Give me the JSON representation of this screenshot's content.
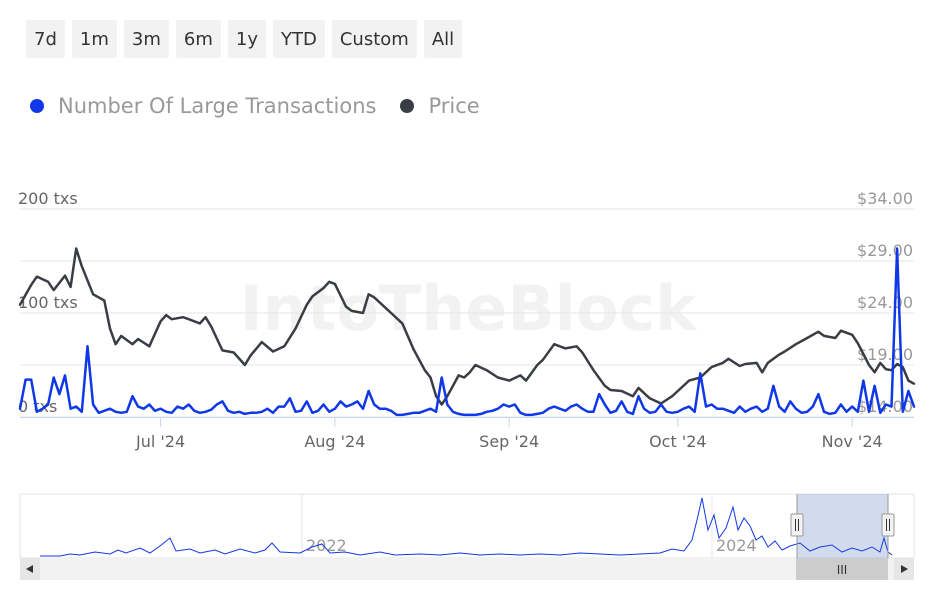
{
  "range_selector": {
    "buttons": [
      "7d",
      "1m",
      "3m",
      "6m",
      "1y",
      "YTD",
      "Custom",
      "All"
    ]
  },
  "legend": {
    "items": [
      {
        "label": "Number Of Large Transactions",
        "color": "#1038e8"
      },
      {
        "label": "Price",
        "color": "#3a3e44"
      }
    ]
  },
  "watermark": "IntoTheBlock",
  "chart_data": {
    "type": "line",
    "x_start": "2024-06-06",
    "x_end": "2024-11-12",
    "x_ticks": [
      {
        "date": "2024-07-01",
        "label": "Jul '24"
      },
      {
        "date": "2024-08-01",
        "label": "Aug '24"
      },
      {
        "date": "2024-09-01",
        "label": "Sep '24"
      },
      {
        "date": "2024-10-01",
        "label": "Oct '24"
      },
      {
        "date": "2024-11-01",
        "label": "Nov '24"
      }
    ],
    "y_left": {
      "min": 0,
      "max": 200,
      "ticks": [
        0,
        100,
        200
      ],
      "tick_labels": [
        "0 txs",
        "100 txs",
        "200 txs"
      ]
    },
    "y_right": {
      "min": 14,
      "max": 34,
      "ticks": [
        14,
        19,
        24,
        29,
        34
      ],
      "tick_labels": [
        "$14.00",
        "$19.00",
        "$24.00",
        "$29.00",
        "$34.00"
      ]
    },
    "grid": true,
    "series": [
      {
        "name": "Price",
        "axis": "right",
        "color": "#3a3e44",
        "points": [
          [
            "2024-06-06",
            24.8
          ],
          [
            "2024-06-08",
            26.7
          ],
          [
            "2024-06-09",
            27.5
          ],
          [
            "2024-06-11",
            27.0
          ],
          [
            "2024-06-12",
            26.2
          ],
          [
            "2024-06-14",
            27.6
          ],
          [
            "2024-06-15",
            26.5
          ],
          [
            "2024-06-16",
            30.2
          ],
          [
            "2024-06-17",
            28.5
          ],
          [
            "2024-06-19",
            25.8
          ],
          [
            "2024-06-21",
            25.2
          ],
          [
            "2024-06-22",
            22.5
          ],
          [
            "2024-06-23",
            21.0
          ],
          [
            "2024-06-24",
            21.8
          ],
          [
            "2024-06-26",
            21.0
          ],
          [
            "2024-06-27",
            21.5
          ],
          [
            "2024-06-29",
            20.8
          ],
          [
            "2024-07-01",
            23.2
          ],
          [
            "2024-07-02",
            23.8
          ],
          [
            "2024-07-03",
            23.4
          ],
          [
            "2024-07-05",
            23.6
          ],
          [
            "2024-07-06",
            23.4
          ],
          [
            "2024-07-08",
            23.0
          ],
          [
            "2024-07-09",
            23.6
          ],
          [
            "2024-07-10",
            22.7
          ],
          [
            "2024-07-12",
            20.4
          ],
          [
            "2024-07-14",
            20.2
          ],
          [
            "2024-07-16",
            19.0
          ],
          [
            "2024-07-17",
            19.9
          ],
          [
            "2024-07-19",
            21.2
          ],
          [
            "2024-07-21",
            20.3
          ],
          [
            "2024-07-23",
            20.8
          ],
          [
            "2024-07-25",
            22.5
          ],
          [
            "2024-07-27",
            24.8
          ],
          [
            "2024-07-28",
            25.6
          ],
          [
            "2024-07-30",
            26.4
          ],
          [
            "2024-07-31",
            27.0
          ],
          [
            "2024-08-01",
            26.8
          ],
          [
            "2024-08-03",
            24.6
          ],
          [
            "2024-08-04",
            24.2
          ],
          [
            "2024-08-06",
            24.0
          ],
          [
            "2024-08-07",
            25.8
          ],
          [
            "2024-08-08",
            25.5
          ],
          [
            "2024-08-10",
            24.5
          ],
          [
            "2024-08-11",
            24.0
          ],
          [
            "2024-08-13",
            23.0
          ],
          [
            "2024-08-15",
            20.5
          ],
          [
            "2024-08-17",
            18.5
          ],
          [
            "2024-08-18",
            17.8
          ],
          [
            "2024-08-19",
            16.0
          ],
          [
            "2024-08-20",
            15.2
          ],
          [
            "2024-08-21",
            16.0
          ],
          [
            "2024-08-23",
            18.0
          ],
          [
            "2024-08-24",
            17.8
          ],
          [
            "2024-08-25",
            18.3
          ],
          [
            "2024-08-26",
            19.0
          ],
          [
            "2024-08-28",
            18.5
          ],
          [
            "2024-08-30",
            17.8
          ],
          [
            "2024-09-01",
            17.5
          ],
          [
            "2024-09-03",
            18.0
          ],
          [
            "2024-09-04",
            17.5
          ],
          [
            "2024-09-06",
            19.0
          ],
          [
            "2024-09-07",
            19.5
          ],
          [
            "2024-09-09",
            21.0
          ],
          [
            "2024-09-11",
            20.6
          ],
          [
            "2024-09-13",
            20.8
          ],
          [
            "2024-09-14",
            20.2
          ],
          [
            "2024-09-16",
            18.5
          ],
          [
            "2024-09-18",
            17.0
          ],
          [
            "2024-09-19",
            16.6
          ],
          [
            "2024-09-21",
            16.5
          ],
          [
            "2024-09-23",
            16.0
          ],
          [
            "2024-09-24",
            16.8
          ],
          [
            "2024-09-26",
            15.8
          ],
          [
            "2024-09-28",
            15.3
          ],
          [
            "2024-09-30",
            16.0
          ],
          [
            "2024-10-01",
            16.5
          ],
          [
            "2024-10-03",
            17.5
          ],
          [
            "2024-10-05",
            17.8
          ],
          [
            "2024-10-07",
            18.8
          ],
          [
            "2024-10-09",
            19.2
          ],
          [
            "2024-10-10",
            19.6
          ],
          [
            "2024-10-12",
            18.9
          ],
          [
            "2024-10-13",
            19.1
          ],
          [
            "2024-10-15",
            19.2
          ],
          [
            "2024-10-16",
            18.3
          ],
          [
            "2024-10-17",
            19.2
          ],
          [
            "2024-10-19",
            20.0
          ],
          [
            "2024-10-20",
            20.3
          ],
          [
            "2024-10-22",
            21.0
          ],
          [
            "2024-10-24",
            21.6
          ],
          [
            "2024-10-26",
            22.2
          ],
          [
            "2024-10-27",
            21.8
          ],
          [
            "2024-10-29",
            21.6
          ],
          [
            "2024-10-30",
            22.3
          ],
          [
            "2024-11-01",
            21.9
          ],
          [
            "2024-11-02",
            21.1
          ],
          [
            "2024-11-04",
            19.0
          ],
          [
            "2024-11-05",
            18.3
          ],
          [
            "2024-11-06",
            19.2
          ],
          [
            "2024-11-07",
            18.6
          ],
          [
            "2024-11-08",
            18.5
          ],
          [
            "2024-11-09",
            19.1
          ],
          [
            "2024-11-10",
            18.8
          ],
          [
            "2024-11-11",
            17.5
          ],
          [
            "2024-11-12",
            17.2
          ]
        ]
      },
      {
        "name": "Number Of Large Transactions",
        "axis": "left",
        "color": "#1038e8",
        "points": [
          [
            "2024-06-06",
            8
          ],
          [
            "2024-06-07",
            36
          ],
          [
            "2024-06-08",
            36
          ],
          [
            "2024-06-09",
            5
          ],
          [
            "2024-06-10",
            8
          ],
          [
            "2024-06-11",
            12
          ],
          [
            "2024-06-12",
            38
          ],
          [
            "2024-06-13",
            22
          ],
          [
            "2024-06-14",
            40
          ],
          [
            "2024-06-15",
            8
          ],
          [
            "2024-06-16",
            10
          ],
          [
            "2024-06-17",
            5
          ],
          [
            "2024-06-18",
            68
          ],
          [
            "2024-06-19",
            12
          ],
          [
            "2024-06-20",
            4
          ],
          [
            "2024-06-21",
            6
          ],
          [
            "2024-06-22",
            8
          ],
          [
            "2024-06-23",
            5
          ],
          [
            "2024-06-24",
            4
          ],
          [
            "2024-06-25",
            5
          ],
          [
            "2024-06-26",
            20
          ],
          [
            "2024-06-27",
            10
          ],
          [
            "2024-06-28",
            8
          ],
          [
            "2024-06-29",
            12
          ],
          [
            "2024-06-30",
            6
          ],
          [
            "2024-07-01",
            8
          ],
          [
            "2024-07-02",
            5
          ],
          [
            "2024-07-03",
            4
          ],
          [
            "2024-07-04",
            10
          ],
          [
            "2024-07-05",
            8
          ],
          [
            "2024-07-06",
            12
          ],
          [
            "2024-07-07",
            6
          ],
          [
            "2024-07-08",
            4
          ],
          [
            "2024-07-09",
            5
          ],
          [
            "2024-07-10",
            7
          ],
          [
            "2024-07-11",
            12
          ],
          [
            "2024-07-12",
            15
          ],
          [
            "2024-07-13",
            6
          ],
          [
            "2024-07-14",
            4
          ],
          [
            "2024-07-15",
            5
          ],
          [
            "2024-07-16",
            3
          ],
          [
            "2024-07-17",
            4
          ],
          [
            "2024-07-18",
            4
          ],
          [
            "2024-07-19",
            5
          ],
          [
            "2024-07-20",
            8
          ],
          [
            "2024-07-21",
            4
          ],
          [
            "2024-07-22",
            10
          ],
          [
            "2024-07-23",
            10
          ],
          [
            "2024-07-24",
            18
          ],
          [
            "2024-07-25",
            5
          ],
          [
            "2024-07-26",
            6
          ],
          [
            "2024-07-27",
            15
          ],
          [
            "2024-07-28",
            4
          ],
          [
            "2024-07-29",
            6
          ],
          [
            "2024-07-30",
            12
          ],
          [
            "2024-07-31",
            5
          ],
          [
            "2024-08-01",
            8
          ],
          [
            "2024-08-02",
            15
          ],
          [
            "2024-08-03",
            10
          ],
          [
            "2024-08-04",
            12
          ],
          [
            "2024-08-05",
            15
          ],
          [
            "2024-08-06",
            8
          ],
          [
            "2024-08-07",
            25
          ],
          [
            "2024-08-08",
            12
          ],
          [
            "2024-08-09",
            8
          ],
          [
            "2024-08-10",
            8
          ],
          [
            "2024-08-11",
            6
          ],
          [
            "2024-08-12",
            2
          ],
          [
            "2024-08-13",
            2
          ],
          [
            "2024-08-14",
            3
          ],
          [
            "2024-08-15",
            4
          ],
          [
            "2024-08-16",
            4
          ],
          [
            "2024-08-17",
            6
          ],
          [
            "2024-08-18",
            8
          ],
          [
            "2024-08-19",
            5
          ],
          [
            "2024-08-20",
            38
          ],
          [
            "2024-08-21",
            12
          ],
          [
            "2024-08-22",
            5
          ],
          [
            "2024-08-23",
            3
          ],
          [
            "2024-08-24",
            2
          ],
          [
            "2024-08-25",
            2
          ],
          [
            "2024-08-26",
            2
          ],
          [
            "2024-08-27",
            3
          ],
          [
            "2024-08-28",
            5
          ],
          [
            "2024-08-29",
            6
          ],
          [
            "2024-08-30",
            8
          ],
          [
            "2024-08-31",
            12
          ],
          [
            "2024-09-01",
            10
          ],
          [
            "2024-09-02",
            12
          ],
          [
            "2024-09-03",
            4
          ],
          [
            "2024-09-04",
            2
          ],
          [
            "2024-09-05",
            2
          ],
          [
            "2024-09-06",
            3
          ],
          [
            "2024-09-07",
            4
          ],
          [
            "2024-09-08",
            8
          ],
          [
            "2024-09-09",
            10
          ],
          [
            "2024-09-10",
            8
          ],
          [
            "2024-09-11",
            6
          ],
          [
            "2024-09-12",
            10
          ],
          [
            "2024-09-13",
            12
          ],
          [
            "2024-09-14",
            8
          ],
          [
            "2024-09-15",
            5
          ],
          [
            "2024-09-16",
            5
          ],
          [
            "2024-09-17",
            22
          ],
          [
            "2024-09-18",
            12
          ],
          [
            "2024-09-19",
            4
          ],
          [
            "2024-09-20",
            6
          ],
          [
            "2024-09-21",
            15
          ],
          [
            "2024-09-22",
            5
          ],
          [
            "2024-09-23",
            3
          ],
          [
            "2024-09-24",
            20
          ],
          [
            "2024-09-25",
            8
          ],
          [
            "2024-09-26",
            4
          ],
          [
            "2024-09-27",
            5
          ],
          [
            "2024-09-28",
            12
          ],
          [
            "2024-09-29",
            5
          ],
          [
            "2024-09-30",
            4
          ],
          [
            "2024-10-01",
            5
          ],
          [
            "2024-10-02",
            8
          ],
          [
            "2024-10-03",
            10
          ],
          [
            "2024-10-04",
            5
          ],
          [
            "2024-10-05",
            42
          ],
          [
            "2024-10-06",
            10
          ],
          [
            "2024-10-07",
            12
          ],
          [
            "2024-10-08",
            8
          ],
          [
            "2024-10-09",
            8
          ],
          [
            "2024-10-10",
            6
          ],
          [
            "2024-10-11",
            4
          ],
          [
            "2024-10-12",
            10
          ],
          [
            "2024-10-13",
            5
          ],
          [
            "2024-10-14",
            8
          ],
          [
            "2024-10-15",
            10
          ],
          [
            "2024-10-16",
            5
          ],
          [
            "2024-10-17",
            8
          ],
          [
            "2024-10-18",
            30
          ],
          [
            "2024-10-19",
            10
          ],
          [
            "2024-10-20",
            5
          ],
          [
            "2024-10-21",
            15
          ],
          [
            "2024-10-22",
            8
          ],
          [
            "2024-10-23",
            4
          ],
          [
            "2024-10-24",
            5
          ],
          [
            "2024-10-25",
            10
          ],
          [
            "2024-10-26",
            22
          ],
          [
            "2024-10-27",
            5
          ],
          [
            "2024-10-28",
            3
          ],
          [
            "2024-10-29",
            4
          ],
          [
            "2024-10-30",
            12
          ],
          [
            "2024-10-31",
            5
          ],
          [
            "2024-11-01",
            10
          ],
          [
            "2024-11-02",
            5
          ],
          [
            "2024-11-03",
            35
          ],
          [
            "2024-11-04",
            5
          ],
          [
            "2024-11-05",
            30
          ],
          [
            "2024-11-06",
            4
          ],
          [
            "2024-11-07",
            12
          ],
          [
            "2024-11-08",
            10
          ],
          [
            "2024-11-09",
            162
          ],
          [
            "2024-11-10",
            5
          ],
          [
            "2024-11-11",
            25
          ],
          [
            "2024-11-12",
            10
          ]
        ]
      }
    ],
    "navigator": {
      "labels": [
        "2022",
        "2024"
      ],
      "scrollbar_handle": "III"
    }
  }
}
